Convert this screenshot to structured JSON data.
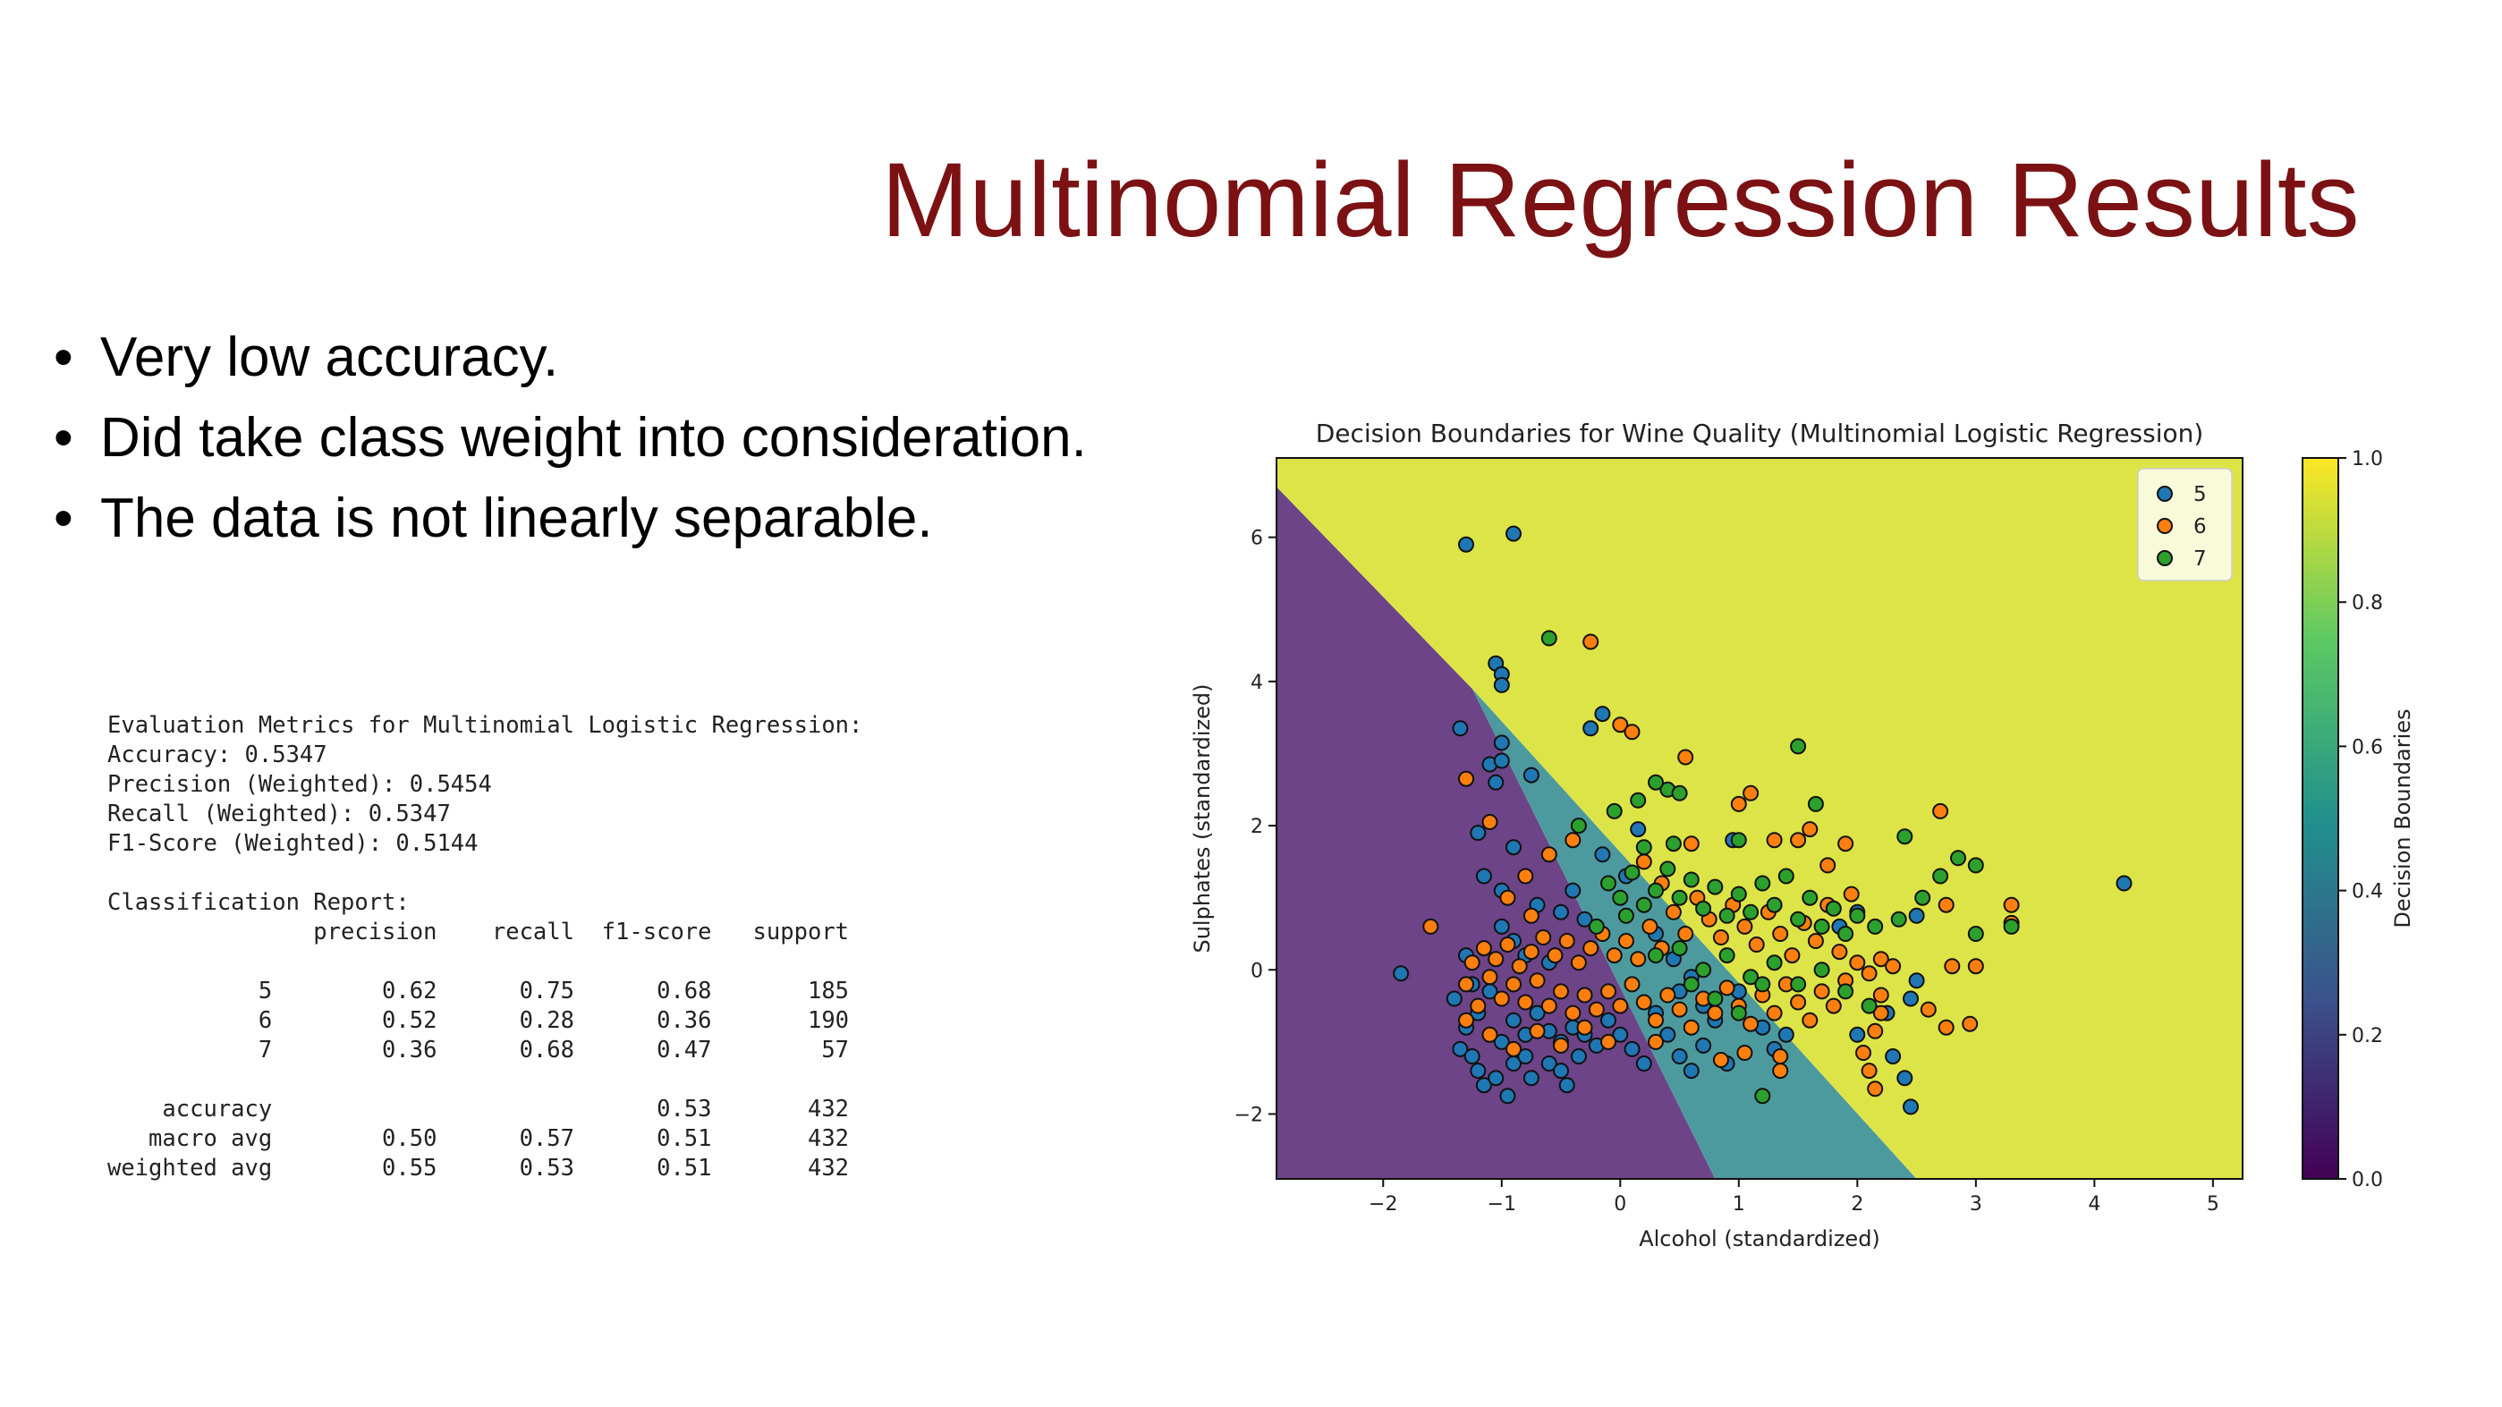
{
  "slide": {
    "title": "Multinomial Regression Results",
    "bullets": [
      "Very low accuracy.",
      "Did take class weight into consideration.",
      "The data is not linearly separable."
    ],
    "bullet_glyph": "•"
  },
  "report": {
    "heading": "Evaluation Metrics for Multinomial Logistic Regression:",
    "metrics": [
      {
        "label": "Accuracy",
        "value": "0.5347"
      },
      {
        "label": "Precision (Weighted)",
        "value": "0.5454"
      },
      {
        "label": "Recall (Weighted)",
        "value": "0.5347"
      },
      {
        "label": "F1-Score (Weighted)",
        "value": "0.5144"
      }
    ],
    "classification_heading": "Classification Report:",
    "columns": [
      "precision",
      "recall",
      "f1-score",
      "support"
    ],
    "rows": [
      {
        "label": "5",
        "precision": "0.62",
        "recall": "0.75",
        "f1": "0.68",
        "support": "185"
      },
      {
        "label": "6",
        "precision": "0.52",
        "recall": "0.28",
        "f1": "0.36",
        "support": "190"
      },
      {
        "label": "7",
        "precision": "0.36",
        "recall": "0.68",
        "f1": "0.47",
        "support": "57"
      }
    ],
    "summary": [
      {
        "label": "accuracy",
        "precision": "",
        "recall": "",
        "f1": "0.53",
        "support": "432"
      },
      {
        "label": "macro avg",
        "precision": "0.50",
        "recall": "0.57",
        "f1": "0.51",
        "support": "432"
      },
      {
        "label": "weighted avg",
        "precision": "0.55",
        "recall": "0.53",
        "f1": "0.51",
        "support": "432"
      }
    ]
  },
  "chart_data": {
    "type": "scatter",
    "title": "Decision Boundaries for Wine Quality (Multinomial Logistic Regression)",
    "xlabel": "Alcohol (standardized)",
    "ylabel": "Sulphates (standardized)",
    "xlim": [
      -2.9,
      5.25
    ],
    "ylim": [
      -2.9,
      7.1
    ],
    "xticks": [
      -2,
      -1,
      0,
      1,
      2,
      3,
      4,
      5
    ],
    "yticks": [
      -2,
      0,
      2,
      4,
      6
    ],
    "grid": false,
    "legend_position": "top-right",
    "colorbar": {
      "label": "Decision Boundaries",
      "ticks": [
        "0.0",
        "0.2",
        "0.4",
        "0.6",
        "0.8",
        "1.0"
      ],
      "cmap": [
        "#440154",
        "#3b528b",
        "#21918c",
        "#5ec962",
        "#fde725"
      ]
    },
    "regions": [
      {
        "class": "5",
        "color": "#6c4487",
        "polygon": [
          [
            -2.9,
            6.7
          ],
          [
            -2.9,
            -2.9
          ],
          [
            0.8,
            -2.9
          ],
          [
            -1.25,
            3.9
          ]
        ]
      },
      {
        "class": "6",
        "color": "#4d9a9e",
        "polygon": [
          [
            -1.25,
            3.9
          ],
          [
            0.8,
            -2.9
          ],
          [
            2.5,
            -2.9
          ]
        ]
      },
      {
        "class": "7",
        "color": "#dde447",
        "polygon": [
          [
            -2.9,
            7.1
          ],
          [
            5.25,
            7.1
          ],
          [
            5.25,
            -2.9
          ],
          [
            2.5,
            -2.9
          ],
          [
            -1.25,
            3.9
          ],
          [
            -2.9,
            6.7
          ]
        ]
      }
    ],
    "series": [
      {
        "name": "5",
        "color": "#1f77b4",
        "points": [
          [
            -1.3,
            5.9
          ],
          [
            -0.9,
            6.05
          ],
          [
            -1.05,
            4.25
          ],
          [
            -1.0,
            4.1
          ],
          [
            -1.0,
            3.95
          ],
          [
            -0.15,
            3.55
          ],
          [
            -0.25,
            3.35
          ],
          [
            -1.35,
            3.35
          ],
          [
            -1.0,
            3.15
          ],
          [
            -1.1,
            2.85
          ],
          [
            -1.0,
            2.9
          ],
          [
            -1.05,
            2.6
          ],
          [
            -0.75,
            2.7
          ],
          [
            -1.2,
            1.9
          ],
          [
            -0.9,
            1.7
          ],
          [
            -1.15,
            1.3
          ],
          [
            -1.0,
            1.1
          ],
          [
            0.15,
            1.95
          ],
          [
            -1.85,
            -0.05
          ],
          [
            -1.3,
            0.2
          ],
          [
            -1.4,
            -0.4
          ],
          [
            -1.35,
            -1.1
          ],
          [
            -1.25,
            -1.2
          ],
          [
            -1.2,
            -1.4
          ],
          [
            -1.15,
            -1.6
          ],
          [
            -1.05,
            -1.5
          ],
          [
            -0.95,
            -1.75
          ],
          [
            -0.9,
            -1.3
          ],
          [
            -0.8,
            -1.2
          ],
          [
            -0.75,
            -1.5
          ],
          [
            -0.6,
            -1.3
          ],
          [
            -0.5,
            -1.4
          ],
          [
            -0.45,
            -1.6
          ],
          [
            -0.35,
            -1.2
          ],
          [
            -1.3,
            -0.8
          ],
          [
            -1.2,
            -0.6
          ],
          [
            -1.1,
            -0.9
          ],
          [
            -1.0,
            -1.0
          ],
          [
            -0.9,
            -0.7
          ],
          [
            -0.8,
            -0.9
          ],
          [
            -0.7,
            -0.6
          ],
          [
            -0.6,
            -0.85
          ],
          [
            -0.5,
            -1.0
          ],
          [
            -0.4,
            -0.8
          ],
          [
            -0.3,
            -0.9
          ],
          [
            -0.2,
            -1.05
          ],
          [
            -0.1,
            -0.7
          ],
          [
            0.0,
            -0.9
          ],
          [
            0.1,
            -1.1
          ],
          [
            0.2,
            -1.3
          ],
          [
            0.3,
            -0.6
          ],
          [
            0.4,
            -0.9
          ],
          [
            0.5,
            -1.2
          ],
          [
            0.6,
            -1.4
          ],
          [
            0.7,
            -1.05
          ],
          [
            0.8,
            -0.7
          ],
          [
            0.9,
            -1.3
          ],
          [
            0.5,
            -0.3
          ],
          [
            0.6,
            -0.1
          ],
          [
            0.7,
            -0.5
          ],
          [
            1.0,
            -0.3
          ],
          [
            1.2,
            -0.8
          ],
          [
            1.3,
            -1.1
          ],
          [
            1.4,
            -0.9
          ],
          [
            2.0,
            -0.9
          ],
          [
            2.25,
            -0.6
          ],
          [
            2.3,
            -1.2
          ],
          [
            2.4,
            -1.5
          ],
          [
            2.45,
            -1.9
          ],
          [
            2.45,
            -0.4
          ],
          [
            2.5,
            0.75
          ],
          [
            2.5,
            -0.15
          ],
          [
            2.0,
            0.8
          ],
          [
            1.85,
            0.6
          ],
          [
            4.25,
            1.2
          ],
          [
            0.95,
            1.8
          ],
          [
            -0.9,
            0.4
          ],
          [
            -1.0,
            0.6
          ],
          [
            -0.7,
            0.9
          ],
          [
            -0.5,
            0.8
          ],
          [
            -0.4,
            1.1
          ],
          [
            -0.3,
            0.7
          ],
          [
            -0.15,
            1.6
          ],
          [
            0.05,
            1.3
          ],
          [
            -0.6,
            0.1
          ],
          [
            -0.8,
            0.2
          ],
          [
            -1.25,
            -0.2
          ],
          [
            -1.1,
            -0.3
          ],
          [
            0.3,
            0.5
          ],
          [
            0.45,
            0.15
          ]
        ]
      },
      {
        "name": "6",
        "color": "#ff7f0e",
        "points": [
          [
            -0.25,
            4.55
          ],
          [
            -1.6,
            0.6
          ],
          [
            -1.3,
            2.65
          ],
          [
            -1.1,
            2.05
          ],
          [
            0.0,
            3.4
          ],
          [
            0.1,
            3.3
          ],
          [
            0.55,
            2.95
          ],
          [
            1.0,
            2.3
          ],
          [
            1.1,
            2.45
          ],
          [
            0.6,
            1.75
          ],
          [
            1.3,
            1.8
          ],
          [
            1.5,
            1.8
          ],
          [
            1.6,
            1.95
          ],
          [
            1.9,
            1.75
          ],
          [
            2.7,
            2.2
          ],
          [
            2.75,
            0.9
          ],
          [
            3.3,
            0.9
          ],
          [
            3.3,
            0.65
          ],
          [
            2.8,
            0.05
          ],
          [
            3.0,
            0.05
          ],
          [
            2.75,
            -0.8
          ],
          [
            2.95,
            -0.75
          ],
          [
            2.6,
            -0.55
          ],
          [
            2.2,
            -0.35
          ],
          [
            2.2,
            -0.6
          ],
          [
            2.15,
            -0.85
          ],
          [
            2.1,
            -1.4
          ],
          [
            2.15,
            -1.65
          ],
          [
            2.05,
            -1.15
          ],
          [
            1.35,
            -1.2
          ],
          [
            1.35,
            -1.4
          ],
          [
            1.05,
            -1.15
          ],
          [
            0.85,
            -1.25
          ],
          [
            -1.3,
            -0.2
          ],
          [
            -1.2,
            -0.5
          ],
          [
            -1.1,
            -0.1
          ],
          [
            -1.0,
            -0.4
          ],
          [
            -0.9,
            -0.2
          ],
          [
            -0.8,
            -0.45
          ],
          [
            -0.7,
            -0.15
          ],
          [
            -0.6,
            -0.5
          ],
          [
            -0.5,
            -0.3
          ],
          [
            -0.4,
            -0.6
          ],
          [
            -0.3,
            -0.35
          ],
          [
            -0.2,
            -0.55
          ],
          [
            -0.1,
            -0.3
          ],
          [
            0.0,
            -0.5
          ],
          [
            0.1,
            -0.2
          ],
          [
            0.2,
            -0.45
          ],
          [
            0.3,
            -0.7
          ],
          [
            0.4,
            -0.35
          ],
          [
            0.5,
            -0.55
          ],
          [
            0.6,
            -0.8
          ],
          [
            0.7,
            -0.4
          ],
          [
            0.8,
            -0.6
          ],
          [
            0.9,
            -0.25
          ],
          [
            1.0,
            -0.5
          ],
          [
            1.1,
            -0.75
          ],
          [
            1.2,
            -0.35
          ],
          [
            1.3,
            -0.6
          ],
          [
            1.4,
            -0.2
          ],
          [
            1.5,
            -0.45
          ],
          [
            1.6,
            -0.7
          ],
          [
            1.7,
            -0.3
          ],
          [
            1.8,
            -0.5
          ],
          [
            1.9,
            -0.15
          ],
          [
            2.0,
            0.1
          ],
          [
            2.1,
            -0.05
          ],
          [
            2.2,
            0.15
          ],
          [
            2.3,
            0.05
          ],
          [
            -1.25,
            0.1
          ],
          [
            -1.15,
            0.3
          ],
          [
            -1.05,
            0.15
          ],
          [
            -0.95,
            0.35
          ],
          [
            -0.85,
            0.05
          ],
          [
            -0.75,
            0.25
          ],
          [
            -0.65,
            0.45
          ],
          [
            -0.55,
            0.2
          ],
          [
            -0.45,
            0.4
          ],
          [
            -0.35,
            0.1
          ],
          [
            -0.25,
            0.3
          ],
          [
            -0.15,
            0.5
          ],
          [
            -0.05,
            0.2
          ],
          [
            0.05,
            0.4
          ],
          [
            0.15,
            0.15
          ],
          [
            0.25,
            0.6
          ],
          [
            0.35,
            0.3
          ],
          [
            0.45,
            0.8
          ],
          [
            0.55,
            0.5
          ],
          [
            0.65,
            1.0
          ],
          [
            0.75,
            0.7
          ],
          [
            0.85,
            0.45
          ],
          [
            0.95,
            0.9
          ],
          [
            1.05,
            0.6
          ],
          [
            1.15,
            0.35
          ],
          [
            1.25,
            0.8
          ],
          [
            1.35,
            0.5
          ],
          [
            1.45,
            0.2
          ],
          [
            1.55,
            0.65
          ],
          [
            1.65,
            0.4
          ],
          [
            1.75,
            0.9
          ],
          [
            1.85,
            0.25
          ],
          [
            -0.6,
            1.6
          ],
          [
            -0.8,
            1.3
          ],
          [
            -0.4,
            1.8
          ],
          [
            0.2,
            1.5
          ],
          [
            0.35,
            1.2
          ],
          [
            -1.3,
            -0.7
          ],
          [
            -1.1,
            -0.9
          ],
          [
            -0.9,
            -1.1
          ],
          [
            -0.7,
            -0.85
          ],
          [
            -0.5,
            -1.05
          ],
          [
            -0.3,
            -0.8
          ],
          [
            -0.1,
            -1.0
          ],
          [
            0.3,
            -1.0
          ],
          [
            -0.95,
            1.0
          ],
          [
            -0.75,
            0.75
          ],
          [
            1.75,
            1.45
          ],
          [
            1.95,
            1.05
          ]
        ]
      },
      {
        "name": "7",
        "color": "#2ca02c",
        "points": [
          [
            -0.6,
            4.6
          ],
          [
            1.5,
            3.1
          ],
          [
            -0.35,
            2.0
          ],
          [
            -0.05,
            2.2
          ],
          [
            0.15,
            2.35
          ],
          [
            0.4,
            2.5
          ],
          [
            0.5,
            2.45
          ],
          [
            0.3,
            2.6
          ],
          [
            1.65,
            2.3
          ],
          [
            1.0,
            1.8
          ],
          [
            2.4,
            1.85
          ],
          [
            2.85,
            1.55
          ],
          [
            3.0,
            1.45
          ],
          [
            2.7,
            1.3
          ],
          [
            2.55,
            1.0
          ],
          [
            3.3,
            0.6
          ],
          [
            3.0,
            0.5
          ],
          [
            2.35,
            0.7
          ],
          [
            2.15,
            0.6
          ],
          [
            1.2,
            -1.75
          ],
          [
            -0.1,
            1.2
          ],
          [
            0.0,
            1.0
          ],
          [
            0.1,
            1.35
          ],
          [
            0.2,
            0.9
          ],
          [
            0.3,
            1.1
          ],
          [
            0.4,
            1.4
          ],
          [
            0.5,
            1.0
          ],
          [
            0.6,
            1.25
          ],
          [
            0.7,
            0.85
          ],
          [
            0.8,
            1.15
          ],
          [
            0.9,
            0.75
          ],
          [
            1.0,
            1.05
          ],
          [
            1.1,
            0.8
          ],
          [
            1.2,
            1.2
          ],
          [
            1.3,
            0.9
          ],
          [
            1.4,
            1.3
          ],
          [
            1.5,
            0.7
          ],
          [
            1.6,
            1.0
          ],
          [
            1.7,
            0.6
          ],
          [
            1.8,
            0.85
          ],
          [
            1.9,
            0.5
          ],
          [
            2.0,
            0.75
          ],
          [
            0.3,
            0.2
          ],
          [
            0.5,
            0.3
          ],
          [
            0.7,
            0.0
          ],
          [
            0.9,
            0.2
          ],
          [
            1.1,
            -0.1
          ],
          [
            1.3,
            0.1
          ],
          [
            1.5,
            -0.2
          ],
          [
            1.7,
            0.0
          ],
          [
            1.9,
            -0.3
          ],
          [
            2.1,
            -0.5
          ],
          [
            0.6,
            -0.2
          ],
          [
            0.8,
            -0.4
          ],
          [
            1.0,
            -0.6
          ],
          [
            1.2,
            -0.2
          ],
          [
            0.2,
            1.7
          ],
          [
            0.45,
            1.75
          ],
          [
            -0.2,
            0.6
          ],
          [
            0.05,
            0.75
          ]
        ]
      }
    ]
  }
}
